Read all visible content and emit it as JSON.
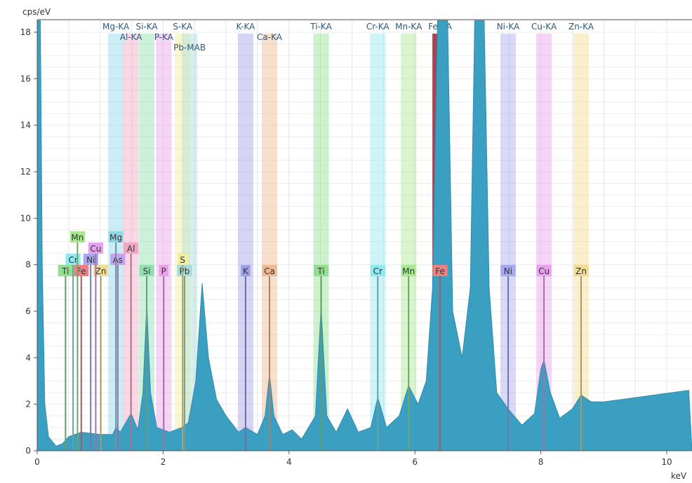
{
  "chart_data": {
    "type": "area",
    "ylabel": "cps/eV",
    "xlabel": "keV",
    "xlim": [
      0,
      10.35
    ],
    "ylim": [
      0,
      18.5
    ],
    "x_ticks": [
      0,
      2,
      4,
      6,
      8,
      10
    ],
    "y_ticks": [
      0,
      2,
      4,
      6,
      8,
      10,
      12,
      14,
      16,
      18
    ],
    "grid": true,
    "spectrum_color": "#3a9fc0",
    "spectrum": [
      [
        0,
        18.5
      ],
      [
        0.05,
        18.5
      ],
      [
        0.08,
        8
      ],
      [
        0.12,
        2
      ],
      [
        0.18,
        0.6
      ],
      [
        0.3,
        0.2
      ],
      [
        0.4,
        0.3
      ],
      [
        0.5,
        0.6
      ],
      [
        0.7,
        0.8
      ],
      [
        1.0,
        0.7
      ],
      [
        1.2,
        0.7
      ],
      [
        1.25,
        1.0
      ],
      [
        1.32,
        0.8
      ],
      [
        1.49,
        1.6
      ],
      [
        1.6,
        0.9
      ],
      [
        1.68,
        2.5
      ],
      [
        1.74,
        6.3
      ],
      [
        1.8,
        2.5
      ],
      [
        1.9,
        1.0
      ],
      [
        2.1,
        0.8
      ],
      [
        2.3,
        1.0
      ],
      [
        2.4,
        1.2
      ],
      [
        2.52,
        3
      ],
      [
        2.62,
        7.2
      ],
      [
        2.72,
        4
      ],
      [
        2.85,
        2.2
      ],
      [
        3.0,
        1.5
      ],
      [
        3.2,
        0.8
      ],
      [
        3.31,
        1.0
      ],
      [
        3.5,
        0.7
      ],
      [
        3.62,
        1.5
      ],
      [
        3.69,
        3.3
      ],
      [
        3.76,
        1.5
      ],
      [
        3.9,
        0.7
      ],
      [
        4.05,
        0.9
      ],
      [
        4.2,
        0.5
      ],
      [
        4.42,
        1.5
      ],
      [
        4.51,
        6.2
      ],
      [
        4.6,
        1.5
      ],
      [
        4.75,
        0.8
      ],
      [
        4.93,
        1.8
      ],
      [
        5.1,
        0.8
      ],
      [
        5.3,
        1.0
      ],
      [
        5.41,
        2.3
      ],
      [
        5.55,
        1.0
      ],
      [
        5.75,
        1.5
      ],
      [
        5.9,
        2.8
      ],
      [
        6.05,
        2.0
      ],
      [
        6.18,
        3
      ],
      [
        6.28,
        7
      ],
      [
        6.36,
        18.5
      ],
      [
        6.52,
        18.5
      ],
      [
        6.6,
        6
      ],
      [
        6.75,
        4
      ],
      [
        6.88,
        7
      ],
      [
        6.95,
        18.5
      ],
      [
        7.1,
        18.5
      ],
      [
        7.18,
        7
      ],
      [
        7.3,
        2.5
      ],
      [
        7.48,
        1.8
      ],
      [
        7.7,
        1.1
      ],
      [
        7.9,
        1.6
      ],
      [
        8.0,
        3.5
      ],
      [
        8.05,
        3.9
      ],
      [
        8.15,
        2.5
      ],
      [
        8.3,
        1.4
      ],
      [
        8.5,
        1.8
      ],
      [
        8.64,
        2.4
      ],
      [
        8.8,
        2.1
      ],
      [
        9.0,
        2.1
      ],
      [
        10.35,
        2.6
      ]
    ],
    "lines": [
      {
        "label": "Mg-KA",
        "energy": 1.25,
        "color": "#8fd8e8"
      },
      {
        "label": "Al-KA",
        "energy": 1.49,
        "color": "#f2a6c4"
      },
      {
        "label": "Si-KA",
        "energy": 1.74,
        "color": "#8fe0b0"
      },
      {
        "label": "P-KA",
        "energy": 2.01,
        "color": "#e9a0e9"
      },
      {
        "label": "S-KA",
        "energy": 2.31,
        "color": "#f2ee9a"
      },
      {
        "label": "Pb-MAB",
        "energy": 2.42,
        "color": "#a8dcd8"
      },
      {
        "label": "K-KA",
        "energy": 3.31,
        "color": "#a0a0e8"
      },
      {
        "label": "Ca-KA",
        "energy": 3.69,
        "color": "#f0b890"
      },
      {
        "label": "Ti-KA",
        "energy": 4.51,
        "color": "#90e090"
      },
      {
        "label": "Cr-KA",
        "energy": 5.41,
        "color": "#90e8f0"
      },
      {
        "label": "Mn-KA",
        "energy": 5.9,
        "color": "#a8e890"
      },
      {
        "label": "Fe-KA",
        "energy": 6.4,
        "color": "#a03c4a"
      },
      {
        "label": "Ni-KA",
        "energy": 7.48,
        "color": "#a8a8f0"
      },
      {
        "label": "Cu-KA",
        "energy": 8.05,
        "color": "#e8a0f0"
      },
      {
        "label": "Zn-KA",
        "energy": 8.64,
        "color": "#f2dc90"
      }
    ],
    "markers": [
      {
        "label": "Ti",
        "energy": 0.45,
        "row": 0,
        "color": "#90e090"
      },
      {
        "label": "Fe",
        "energy": 0.7,
        "row": 0,
        "color": "#f08080"
      },
      {
        "label": "Zn",
        "energy": 1.01,
        "row": 0,
        "color": "#f2dc90"
      },
      {
        "label": "Cr",
        "energy": 0.57,
        "row": 1,
        "color": "#90e8f0"
      },
      {
        "label": "Ni",
        "energy": 0.85,
        "row": 1,
        "color": "#a8a8f0"
      },
      {
        "label": "As",
        "energy": 1.28,
        "row": 1,
        "color": "#c8a0f0"
      },
      {
        "label": "S",
        "energy": 2.31,
        "row": 1,
        "color": "#f2ee9a"
      },
      {
        "label": "Cu",
        "energy": 0.93,
        "row": 2,
        "color": "#e8a0f0"
      },
      {
        "label": "Al",
        "energy": 1.49,
        "row": 2,
        "color": "#f2a6c4"
      },
      {
        "label": "Mn",
        "energy": 0.64,
        "row": 3,
        "color": "#a8e890"
      },
      {
        "label": "Mg",
        "energy": 1.25,
        "row": 3,
        "color": "#8fd8e8"
      },
      {
        "label": "Si",
        "energy": 1.74,
        "row": 0,
        "color": "#8fe0b0"
      },
      {
        "label": "P",
        "energy": 2.01,
        "row": 0,
        "color": "#e9a0e9"
      },
      {
        "label": "Pb",
        "energy": 2.34,
        "row": 0,
        "color": "#a8dcd8"
      },
      {
        "label": "K",
        "energy": 3.31,
        "row": 0,
        "color": "#a0a0e8"
      },
      {
        "label": "Ca",
        "energy": 3.69,
        "row": 0,
        "color": "#f0b890"
      },
      {
        "label": "Ti",
        "energy": 4.51,
        "row": 0,
        "color": "#90e090"
      },
      {
        "label": "Cr",
        "energy": 5.41,
        "row": 0,
        "color": "#90e8f0"
      },
      {
        "label": "Mn",
        "energy": 5.9,
        "row": 0,
        "color": "#a8e890"
      },
      {
        "label": "Fe",
        "energy": 6.4,
        "row": 0,
        "color": "#f08080"
      },
      {
        "label": "Ni",
        "energy": 7.48,
        "row": 0,
        "color": "#a8a8f0"
      },
      {
        "label": "Cu",
        "energy": 8.05,
        "row": 0,
        "color": "#e8a0f0"
      },
      {
        "label": "Zn",
        "energy": 8.64,
        "row": 0,
        "color": "#f2dc90"
      }
    ]
  }
}
